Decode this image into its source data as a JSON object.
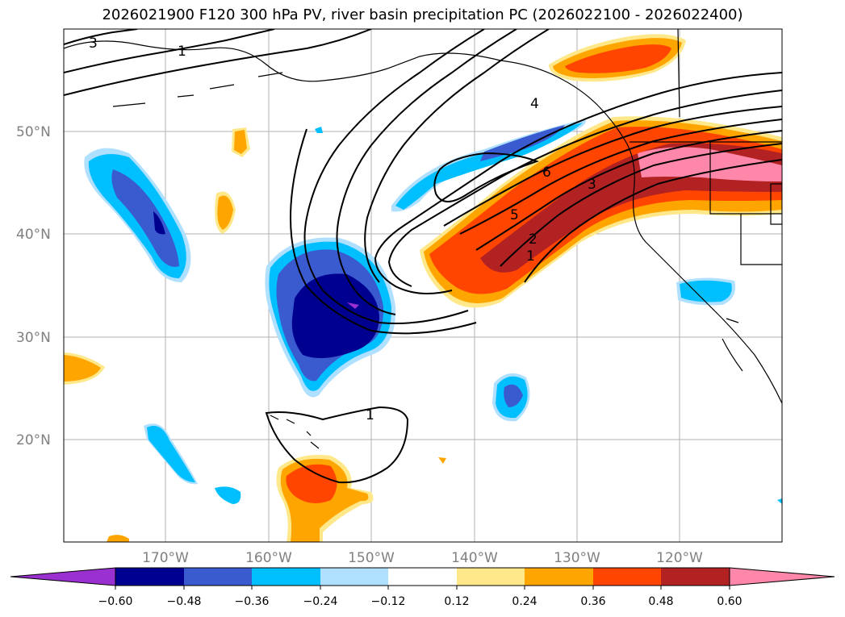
{
  "title": "2026021900 F120 300 hPa PV, river basin precipitation PC (2026022100 - 2026022400)",
  "longitude_labels": [
    "170°W",
    "160°W",
    "150°W",
    "140°W",
    "130°W",
    "120°W"
  ],
  "latitude_labels": [
    "50°N",
    "40°N",
    "30°N",
    "20°N"
  ],
  "colorbar": {
    "tick_labels": [
      "−0.60",
      "−0.48",
      "−0.36",
      "−0.24",
      "−0.12",
      "0.12",
      "0.24",
      "0.36",
      "0.48",
      "0.60"
    ],
    "colors": [
      "#9b30d0",
      "#000090",
      "#3a5ad0",
      "#00bfff",
      "#b0e0ff",
      "#ffffff",
      "#ffe88a",
      "#ffa500",
      "#ff4500",
      "#b22222",
      "#ff88aa"
    ]
  },
  "contour_labels": [
    "3",
    "1",
    "4",
    "6",
    "3",
    "5",
    "2",
    "1",
    "1"
  ]
}
